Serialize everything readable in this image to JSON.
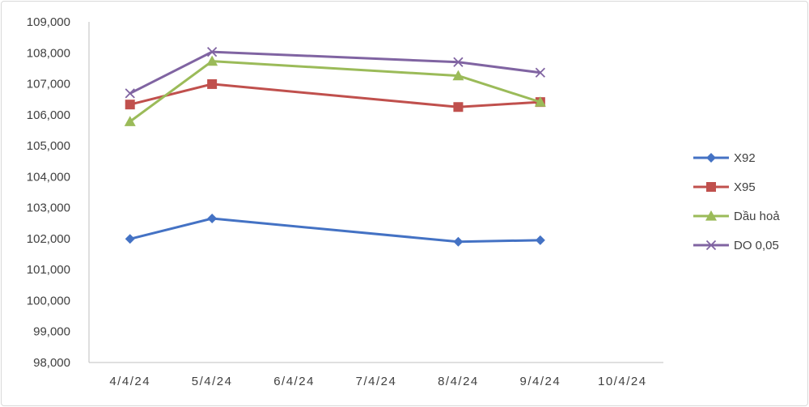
{
  "chart_data": {
    "type": "line",
    "categories": [
      "4/4/24",
      "5/4/24",
      "6/4/24",
      "7/4/24",
      "8/4/24",
      "9/4/24",
      "10/4/24"
    ],
    "ylim": [
      98000,
      109000
    ],
    "ytick_step": 1000,
    "ytick_labels": [
      "98,000",
      "99,000",
      "100,000",
      "101,000",
      "102,000",
      "103,000",
      "104,000",
      "105,000",
      "106,000",
      "107,000",
      "108,000",
      "109,000"
    ],
    "grid": false,
    "legend_position": "right",
    "series": [
      {
        "name": "X92",
        "color": "#4472c4",
        "marker": "diamond",
        "x": [
          "4/4/24",
          "5/4/24",
          "8/4/24",
          "9/4/24"
        ],
        "values": [
          101990,
          102650,
          101900,
          101950
        ]
      },
      {
        "name": "X95",
        "color": "#c0504d",
        "marker": "square",
        "x": [
          "4/4/24",
          "5/4/24",
          "8/4/24",
          "9/4/24"
        ],
        "values": [
          106330,
          106990,
          106250,
          106410
        ]
      },
      {
        "name": "Dầu hoả",
        "color": "#9bbb59",
        "marker": "triangle",
        "x": [
          "4/4/24",
          "5/4/24",
          "8/4/24",
          "9/4/24"
        ],
        "values": [
          105780,
          107730,
          107260,
          106410
        ]
      },
      {
        "name": "DO 0,05",
        "color": "#8064a2",
        "marker": "x",
        "x": [
          "4/4/24",
          "5/4/24",
          "8/4/24",
          "9/4/24"
        ],
        "values": [
          106690,
          108030,
          107700,
          107360
        ]
      }
    ]
  }
}
